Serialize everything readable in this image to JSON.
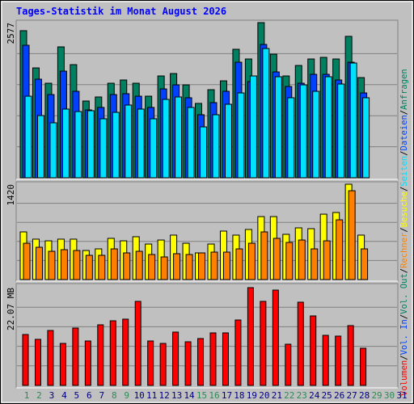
{
  "chart_data": [
    {
      "type": "bar",
      "title": "Tages-Statistik im Monat August 2026",
      "legend_separator": "/",
      "ylim": [
        0,
        2577
      ],
      "yticks": [
        2577
      ],
      "series": [
        {
          "name": "Anfragen",
          "color": "#008060",
          "values": [
            2443,
            1825,
            1570,
            2174,
            1879,
            1275,
            1342,
            1570,
            1624,
            1570,
            1355,
            1691,
            1731,
            1543,
            1235,
            1463,
            1610,
            2134,
            1973,
            2577,
            2053,
            1691,
            1865,
            1973,
            2000,
            1973,
            2349,
            1664,
            null,
            null,
            null
          ]
        },
        {
          "name": "Dateien",
          "color": "#0040ff",
          "values": [
            2201,
            1637,
            1382,
            1771,
            1436,
            1127,
            1168,
            1382,
            1396,
            1355,
            1168,
            1476,
            1543,
            1329,
            1047,
            1248,
            1436,
            1919,
            1597,
            2214,
            1758,
            1516,
            1570,
            1718,
            1718,
            1624,
            1919,
            1409,
            null,
            null,
            null
          ]
        },
        {
          "name": "Seiten",
          "color": "#00e0ff",
          "values": [
            1355,
            1033,
            913,
            1141,
            1100,
            1114,
            980,
            1087,
            1208,
            1141,
            980,
            1302,
            1342,
            1168,
            845,
            1047,
            1221,
            1409,
            1691,
            2147,
            1678,
            1329,
            1543,
            1436,
            1678,
            1557,
            1906,
            1329,
            null,
            null,
            null
          ]
        }
      ]
    },
    {
      "type": "bar",
      "ylim": [
        0,
        1420
      ],
      "yticks": [
        1420
      ],
      "series": [
        {
          "name": "Besuche",
          "color": "#ffff00",
          "values": [
            710,
            602,
            577,
            602,
            602,
            433,
            457,
            614,
            577,
            638,
            529,
            589,
            662,
            541,
            397,
            529,
            722,
            662,
            746,
            938,
            938,
            674,
            770,
            758,
            974,
            999,
            1420,
            662,
            null,
            null,
            null
          ]
        },
        {
          "name": "Rechner",
          "color": "#ff8000",
          "values": [
            541,
            481,
            421,
            445,
            433,
            361,
            361,
            457,
            397,
            421,
            373,
            337,
            385,
            373,
            397,
            409,
            409,
            457,
            541,
            710,
            614,
            553,
            589,
            457,
            577,
            890,
            1323,
            457,
            null,
            null,
            null
          ]
        }
      ]
    },
    {
      "type": "bar",
      "ylim": [
        0,
        22.07
      ],
      "yticks": [
        {
          "value": 22.07,
          "label": "22.07 MB"
        }
      ],
      "categories": [
        "1",
        "2",
        "3",
        "4",
        "5",
        "6",
        "7",
        "8",
        "9",
        "10",
        "11",
        "12",
        "13",
        "14",
        "15",
        "16",
        "17",
        "18",
        "19",
        "20",
        "21",
        "22",
        "23",
        "24",
        "25",
        "26",
        "27",
        "28",
        "29",
        "30",
        "31"
      ],
      "category_colors": [
        "#2e8b57",
        "#2e8b57",
        "#000080",
        "#000080",
        "#000080",
        "#000080",
        "#000080",
        "#2e8b57",
        "#2e8b57",
        "#000080",
        "#000080",
        "#000080",
        "#000080",
        "#000080",
        "#2e8b57",
        "#2e8b57",
        "#000080",
        "#000080",
        "#000080",
        "#000080",
        "#000080",
        "#2e8b57",
        "#2e8b57",
        "#000080",
        "#000080",
        "#000080",
        "#000080",
        "#000080",
        "#2e8b57",
        "#2e8b57",
        "#000080"
      ],
      "series": [
        {
          "name": "Volumen",
          "color": "#ff0000",
          "values": [
            11.49,
            10.4,
            12.4,
            9.48,
            12.95,
            10.03,
            13.68,
            14.59,
            14.96,
            18.97,
            10.03,
            9.48,
            12.04,
            9.85,
            10.58,
            11.86,
            11.86,
            14.77,
            22.07,
            18.97,
            21.52,
            9.3,
            18.79,
            15.69,
            11.31,
            11.13,
            13.5,
            8.39,
            null,
            null,
            null
          ]
        },
        {
          "name": "Vol. In",
          "color": "#0040ff"
        },
        {
          "name": "Vol. Out",
          "color": "#008060"
        }
      ]
    }
  ]
}
